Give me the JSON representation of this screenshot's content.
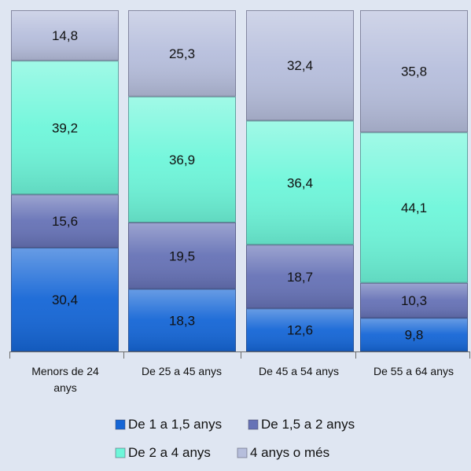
{
  "chart_data": {
    "type": "bar",
    "stacked": true,
    "percent_stacked": true,
    "categories": [
      "Menors de 24 anys",
      "De 25 a 45 anys",
      "De 45 a 54 anys",
      "De 55 a 64 anys"
    ],
    "category_lines": [
      [
        "Menors de 24",
        "anys"
      ],
      [
        "De 25 a 45 anys"
      ],
      [
        "De 45 a 54 anys"
      ],
      [
        "De 55 a 64 anys"
      ]
    ],
    "series": [
      {
        "name": "De 1 a 1,5 anys",
        "values": [
          30.4,
          18.3,
          12.6,
          9.8
        ],
        "labels": [
          "30,4",
          "18,3",
          "12,6",
          "9,8"
        ],
        "color": "#1566d6"
      },
      {
        "name": "De 1,5 a 2 anys",
        "values": [
          15.6,
          19.5,
          18.7,
          10.3
        ],
        "labels": [
          "15,6",
          "19,5",
          "18,7",
          "10,3"
        ],
        "color": "#6672b6"
      },
      {
        "name": "De 2 a 4 anys",
        "values": [
          39.2,
          36.9,
          36.4,
          44.1
        ],
        "labels": [
          "39,2",
          "36,9",
          "36,4",
          "44,1"
        ],
        "color": "#6ef6da"
      },
      {
        "name": "4 anys o més",
        "values": [
          14.8,
          25.3,
          32.4,
          35.8
        ],
        "labels": [
          "14,8",
          "25,3",
          "32,4",
          "35,8"
        ],
        "color": "#b6bedc"
      }
    ],
    "ylim": [
      0,
      100
    ],
    "legend_position": "bottom",
    "grid": false
  }
}
